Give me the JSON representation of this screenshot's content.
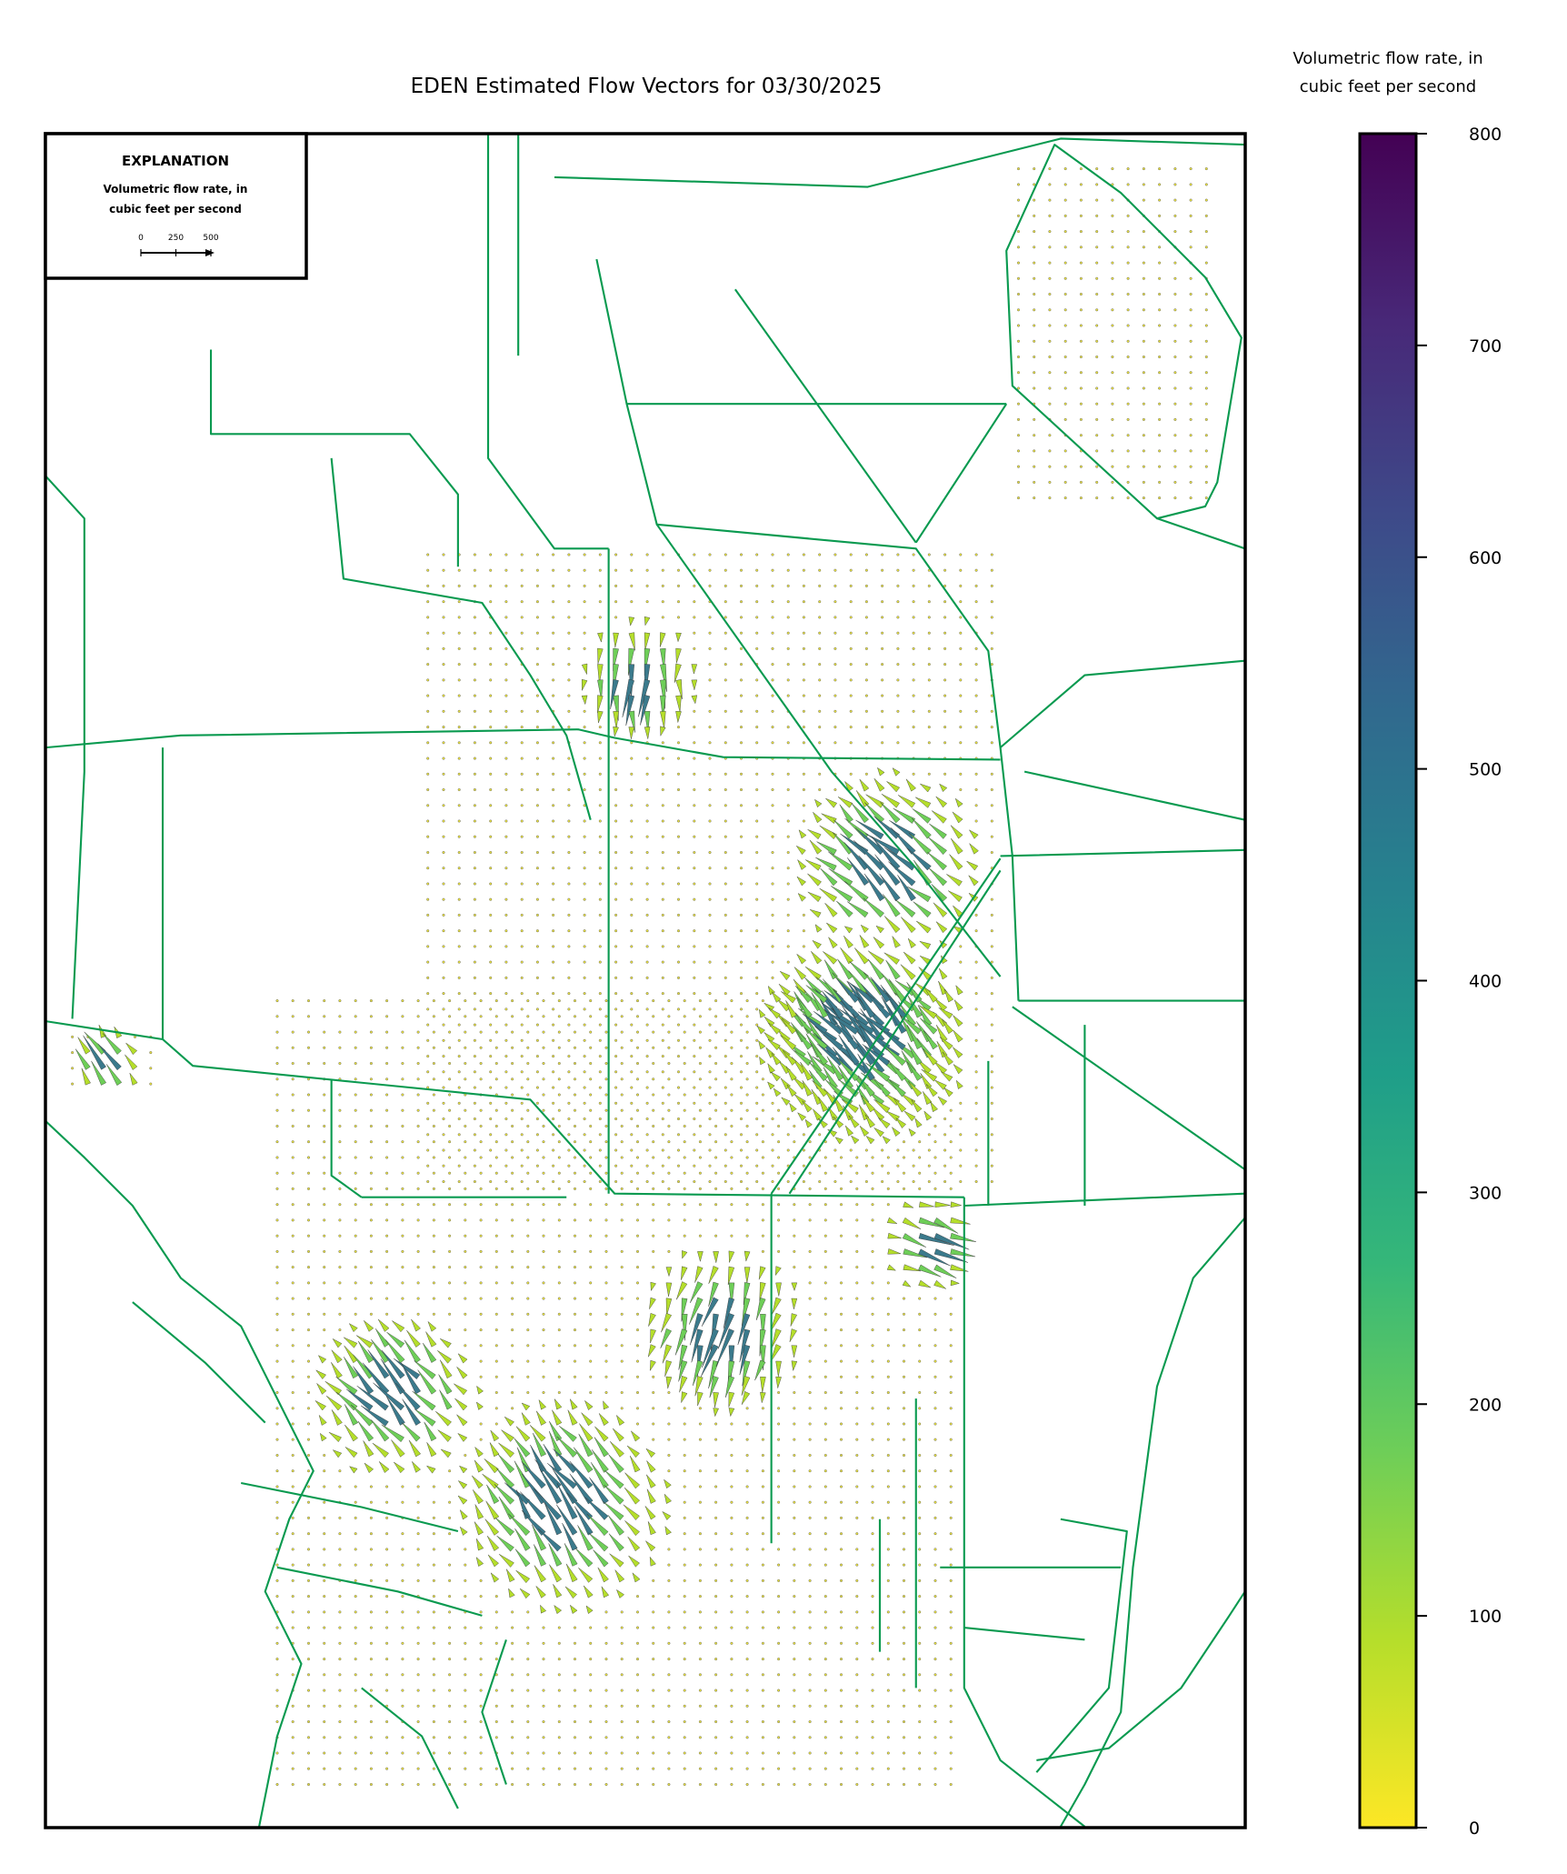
{
  "title": "EDEN Estimated Flow Vectors for 03/30/2025",
  "explanation": {
    "heading": "EXPLANATION",
    "lines": [
      "Volumetric flow rate, in",
      "cubic feet per second"
    ],
    "scale_ticks": [
      0,
      250,
      500
    ]
  },
  "colorbar": {
    "label": [
      "Volumetric flow rate, in",
      "cubic feet per second"
    ],
    "ylim": [
      0,
      800
    ],
    "yticks": [
      0,
      100,
      200,
      300,
      400,
      500,
      600,
      700,
      800
    ],
    "colors": [
      "#fde725",
      "#b5de2b",
      "#6ece58",
      "#35b779",
      "#1f9e89",
      "#26828e",
      "#31688e",
      "#3e4989",
      "#482878",
      "#440154"
    ]
  }
}
